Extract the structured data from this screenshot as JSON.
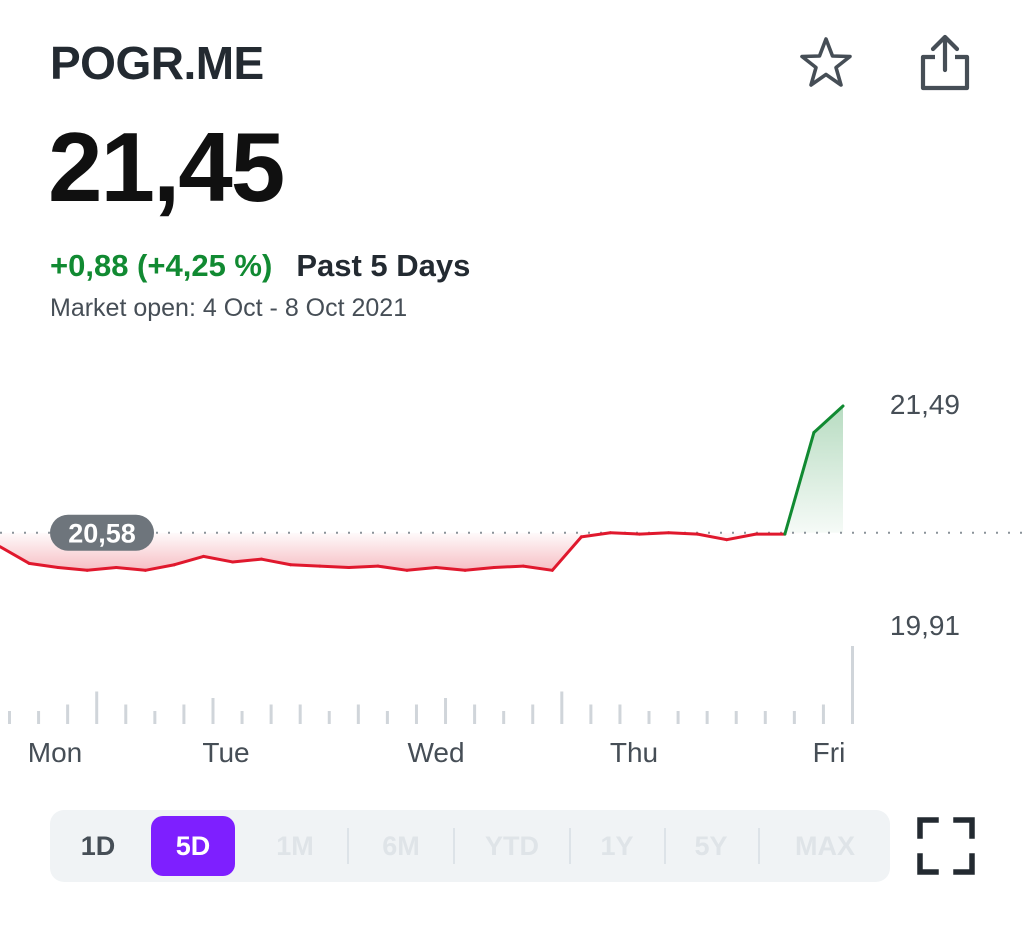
{
  "header": {
    "ticker": "POGR.ME",
    "price": "21,45",
    "change": "+0,88 (+4,25 %)",
    "period": "Past 5 Days",
    "market_status": "Market open: 4 Oct - 8 Oct 2021"
  },
  "icons": {
    "watchlist": "star-outline-icon",
    "share": "share-icon",
    "fullscreen": "fullscreen-icon"
  },
  "colors": {
    "up": "#118a32",
    "down": "#e0182d",
    "accent": "#7e1fff",
    "text": "#232a31"
  },
  "chart": {
    "previous_close_label": "20,58",
    "high_label": "21,49",
    "low_label": "19,91",
    "day_labels": [
      "Mon",
      "Tue",
      "Wed",
      "Thu",
      "Fri"
    ]
  },
  "chart_data": {
    "type": "line",
    "x": [
      "Mon",
      "Mon",
      "Mon",
      "Mon",
      "Mon",
      "Mon",
      "Tue",
      "Tue",
      "Tue",
      "Tue",
      "Tue",
      "Tue",
      "Tue",
      "Wed",
      "Wed",
      "Wed",
      "Wed",
      "Wed",
      "Wed",
      "Wed",
      "Thu",
      "Thu",
      "Thu",
      "Thu",
      "Thu",
      "Thu",
      "Thu",
      "Fri",
      "Fri",
      "Fri"
    ],
    "values": [
      20.48,
      20.36,
      20.33,
      20.31,
      20.33,
      20.31,
      20.35,
      20.41,
      20.37,
      20.39,
      20.35,
      20.34,
      20.33,
      20.34,
      20.31,
      20.33,
      20.31,
      20.33,
      20.34,
      20.31,
      20.55,
      20.58,
      20.57,
      20.58,
      20.57,
      20.53,
      20.57,
      20.57,
      21.3,
      21.49
    ],
    "previous_close": 20.58,
    "ylim": [
      19.91,
      21.49
    ],
    "volume": [
      2,
      2,
      3,
      5,
      3,
      2,
      3,
      4,
      2,
      3,
      3,
      2,
      3,
      2,
      3,
      4,
      3,
      2,
      3,
      5,
      3,
      3,
      2,
      2,
      2,
      2,
      2,
      2,
      3,
      12
    ],
    "series": [
      {
        "values": [
          20.48,
          20.36,
          20.33,
          20.31,
          20.33,
          20.31,
          20.35,
          20.41,
          20.37,
          20.39,
          20.35,
          20.34,
          20.33,
          20.34,
          20.31,
          20.33,
          20.31,
          20.33,
          20.34,
          20.31,
          20.55,
          20.58,
          20.57,
          20.58,
          20.57,
          20.53,
          20.57,
          20.57,
          21.3,
          21.49
        ]
      }
    ]
  },
  "timeframes": {
    "items": [
      "1D",
      "5D",
      "1M",
      "6M",
      "YTD",
      "1Y",
      "5Y",
      "MAX"
    ],
    "selected": "5D"
  }
}
